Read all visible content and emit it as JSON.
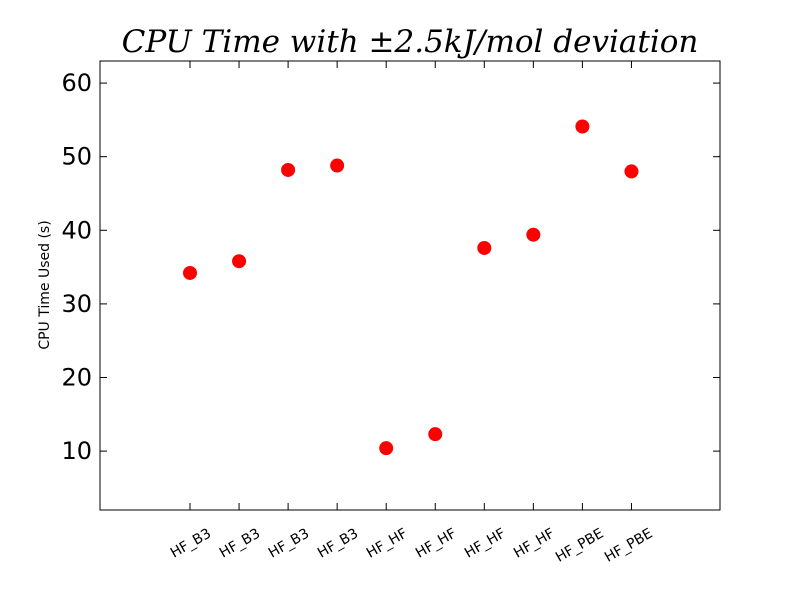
{
  "chart_data": {
    "type": "scatter",
    "title": "CPU Time with ±2.5kJ/mol deviation",
    "xlabel": "",
    "ylabel": "CPU Time Used (s)",
    "categories": [
      "HF_B3",
      "HF_B3",
      "HF_B3",
      "HF_B3",
      "HF_HF",
      "HF_HF",
      "HF_HF",
      "HF_HF",
      "HF_PBE",
      "HF_PBE"
    ],
    "values": [
      34.2,
      35.8,
      48.2,
      48.8,
      10.4,
      12.3,
      37.6,
      39.4,
      54.1,
      48.0
    ],
    "ylim": [
      2,
      63
    ],
    "yticks": [
      10,
      20,
      30,
      40,
      50,
      60
    ],
    "marker_color": "#ff0000",
    "grid": false,
    "legend": "none"
  }
}
